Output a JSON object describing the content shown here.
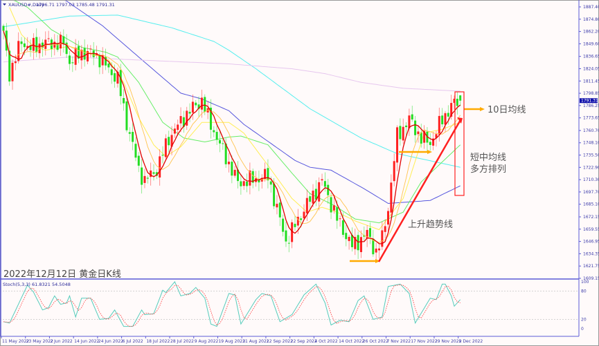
{
  "header": {
    "symbol": "XAUUSD#,Daily",
    "ohlc": "1796.71 1797.03 1785.48 1791.31"
  },
  "caption": "2022年12月12日 黄金日K线",
  "annotations": {
    "ma10_label": "10日均线",
    "ma_alignment_line1": "短中均线",
    "ma_alignment_line2": "多方排列",
    "trendline_label": "上升趋势线"
  },
  "colors": {
    "background": "#fffafa",
    "bull_candle": "#ff2020",
    "bear_candle": "#22dd22",
    "ma5": "#e00000",
    "ma10": "#ffc34d",
    "ma20_yellow": "#ffee55",
    "ma_green": "#66ee66",
    "ma_blue": "#5555dd",
    "ma_cyan": "#55eeee",
    "ma_lavender": "#e6c6ee",
    "annotation_arrow": "#ffaa00",
    "trendline": "#ff2020",
    "stoch_main": "#55ccbb",
    "stoch_signal": "#ff4444",
    "axis": "#5a5ad6",
    "price_tag_bg": "#1010aa"
  },
  "chart_data": [
    {
      "type": "candlestick",
      "title": "XAUUSD#,Daily",
      "x_tick_labels": [
        "11 May 2022",
        "23 May 2022",
        "2 Jun 2022",
        "14 Jun 2022",
        "24 Jun 2022",
        "6 Jul 2022",
        "18 Jul 2022",
        "28 Jul 2022",
        "9 Aug 2022",
        "19 Aug 2022",
        "31 Aug 2022",
        "12 Sep 2022",
        "22 Sep 2022",
        "4 Oct 2022",
        "14 Oct 2022",
        "26 Oct 2022",
        "7 Nov 2022",
        "17 Nov 2022",
        "29 Nov 2022",
        "9 Dec 2022"
      ],
      "x_tick_bar_index": [
        0,
        8,
        16,
        24,
        32,
        40,
        48,
        56,
        64,
        72,
        80,
        88,
        96,
        104,
        112,
        120,
        128,
        136,
        144,
        152
      ],
      "y_tick_labels": [
        "1887.40",
        "1874.80",
        "1862.20",
        "1849.60",
        "1836.65",
        "1824.05",
        "1811.45",
        "1798.85",
        "1786.25",
        "1773.65",
        "1760.70",
        "1748.10",
        "1735.50",
        "1722.90",
        "1710.30",
        "1697.70",
        "1685.10",
        "1672.15",
        "1659.55",
        "1646.95",
        "1634.35",
        "1621.75",
        "1609.15"
      ],
      "ylim": [
        1609.15,
        1887.4
      ],
      "last_price": "1791.31",
      "last_bar_ohlc": [
        1796.71,
        1797.03,
        1785.48,
        1791.31
      ],
      "approx_close_path": [
        [
          0,
          1859
        ],
        [
          2,
          1819
        ],
        [
          6,
          1852
        ],
        [
          9,
          1845
        ],
        [
          13,
          1850
        ],
        [
          20,
          1850
        ],
        [
          22,
          1831
        ],
        [
          26,
          1841
        ],
        [
          31,
          1838
        ],
        [
          38,
          1813
        ],
        [
          41,
          1769
        ],
        [
          45,
          1721
        ],
        [
          47,
          1709
        ],
        [
          51,
          1721
        ],
        [
          55,
          1753
        ],
        [
          61,
          1778
        ],
        [
          66,
          1792
        ],
        [
          68,
          1774
        ],
        [
          71,
          1753
        ],
        [
          78,
          1707
        ],
        [
          88,
          1714
        ],
        [
          91,
          1680
        ],
        [
          94,
          1647
        ],
        [
          100,
          1680
        ],
        [
          106,
          1709
        ],
        [
          111,
          1670
        ],
        [
          116,
          1642
        ],
        [
          121,
          1655
        ],
        [
          124,
          1636
        ],
        [
          126,
          1650
        ],
        [
          128,
          1682
        ],
        [
          131,
          1755
        ],
        [
          135,
          1772
        ],
        [
          139,
          1753
        ],
        [
          142,
          1748
        ],
        [
          146,
          1772
        ],
        [
          149,
          1786
        ],
        [
          152,
          1791.31
        ]
      ],
      "moving_averages": [
        {
          "color": "#55eeee",
          "points": [
            [
              0,
              1867
            ],
            [
              22,
              1878
            ],
            [
              38,
              1879
            ],
            [
              56,
              1866
            ],
            [
              70,
              1852
            ],
            [
              75,
              1843
            ],
            [
              84,
              1824
            ],
            [
              102,
              1783
            ],
            [
              119,
              1753
            ],
            [
              131,
              1737
            ],
            [
              152,
              1723
            ]
          ]
        },
        {
          "color": "#5555dd",
          "points": [
            [
              18,
              1900
            ],
            [
              24,
              1887
            ],
            [
              33,
              1868
            ],
            [
              45,
              1836
            ],
            [
              59,
              1799
            ],
            [
              66,
              1793
            ],
            [
              75,
              1781
            ],
            [
              80,
              1767
            ],
            [
              97,
              1730
            ],
            [
              102,
              1723
            ],
            [
              109,
              1720
            ],
            [
              120,
              1701
            ],
            [
              128,
              1686
            ],
            [
              133,
              1687
            ],
            [
              142,
              1689
            ],
            [
              152,
              1704
            ]
          ]
        },
        {
          "color": "#66ee66",
          "points": [
            [
              0,
              1900
            ],
            [
              8,
              1887
            ],
            [
              16,
              1864
            ],
            [
              26,
              1846
            ],
            [
              34,
              1841
            ],
            [
              38,
              1836
            ],
            [
              45,
              1810
            ],
            [
              53,
              1769
            ],
            [
              60,
              1753
            ],
            [
              67,
              1749
            ],
            [
              75,
              1754
            ],
            [
              79,
              1755
            ],
            [
              88,
              1746
            ],
            [
              96,
              1717
            ],
            [
              102,
              1696
            ],
            [
              110,
              1684
            ],
            [
              117,
              1670
            ],
            [
              125,
              1666
            ],
            [
              133,
              1677
            ],
            [
              139,
              1708
            ],
            [
              152,
              1746
            ]
          ]
        },
        {
          "color": "#ffee55",
          "points": [
            [
              2,
              1887
            ],
            [
              6,
              1859
            ],
            [
              10,
              1847
            ],
            [
              14,
              1843
            ],
            [
              22,
              1847
            ],
            [
              29,
              1840
            ],
            [
              35,
              1833
            ],
            [
              40,
              1810
            ],
            [
              45,
              1774
            ],
            [
              50,
              1746
            ],
            [
              54,
              1734
            ],
            [
              59,
              1744
            ],
            [
              66,
              1769
            ],
            [
              75,
              1769
            ],
            [
              80,
              1758
            ],
            [
              88,
              1725
            ],
            [
              96,
              1691
            ],
            [
              101,
              1677
            ],
            [
              106,
              1682
            ],
            [
              111,
              1677
            ],
            [
              117,
              1668
            ],
            [
              125,
              1659
            ],
            [
              133,
              1691
            ],
            [
              140,
              1758
            ],
            [
              146,
              1762
            ],
            [
              152,
              1769
            ]
          ]
        },
        {
          "color": "#e6c6ee",
          "points": [
            [
              0,
              1831
            ],
            [
              22,
              1836
            ],
            [
              75,
              1829
            ],
            [
              96,
              1824
            ],
            [
              107,
              1819
            ],
            [
              119,
              1810
            ],
            [
              133,
              1804
            ],
            [
              152,
              1801
            ]
          ]
        }
      ]
    },
    {
      "type": "line",
      "title": "Stoch(5,3,3) 61.8321 54.5048",
      "y_tick_labels": [
        "100",
        "80",
        "20",
        "0"
      ],
      "ylim": [
        0,
        100
      ],
      "levels": [
        80,
        20
      ],
      "k_values": [
        [
          0,
          15
        ],
        [
          2,
          12
        ],
        [
          8,
          93
        ],
        [
          10,
          78
        ],
        [
          13,
          40
        ],
        [
          15,
          45
        ],
        [
          17,
          70
        ],
        [
          19,
          52
        ],
        [
          21,
          55
        ],
        [
          22,
          70
        ],
        [
          24,
          25
        ],
        [
          26,
          65
        ],
        [
          29,
          65
        ],
        [
          32,
          20
        ],
        [
          35,
          22
        ],
        [
          37,
          40
        ],
        [
          40,
          5
        ],
        [
          43,
          5
        ],
        [
          46,
          40
        ],
        [
          47,
          30
        ],
        [
          50,
          32
        ],
        [
          53,
          82
        ],
        [
          54,
          77
        ],
        [
          57,
          100
        ],
        [
          59,
          70
        ],
        [
          62,
          75
        ],
        [
          64,
          88
        ],
        [
          67,
          65
        ],
        [
          69,
          10
        ],
        [
          71,
          5
        ],
        [
          75,
          75
        ],
        [
          77,
          72
        ],
        [
          79,
          10
        ],
        [
          84,
          62
        ],
        [
          86,
          75
        ],
        [
          89,
          70
        ],
        [
          92,
          15
        ],
        [
          96,
          30
        ],
        [
          100,
          72
        ],
        [
          104,
          95
        ],
        [
          107,
          55
        ],
        [
          109,
          8
        ],
        [
          112,
          18
        ],
        [
          115,
          15
        ],
        [
          118,
          60
        ],
        [
          120,
          70
        ],
        [
          123,
          20
        ],
        [
          126,
          25
        ],
        [
          128,
          90
        ],
        [
          132,
          95
        ],
        [
          135,
          75
        ],
        [
          137,
          12
        ],
        [
          142,
          65
        ],
        [
          144,
          62
        ],
        [
          146,
          95
        ],
        [
          147,
          95
        ],
        [
          149,
          70
        ],
        [
          150,
          48
        ],
        [
          152,
          62
        ]
      ]
    }
  ]
}
